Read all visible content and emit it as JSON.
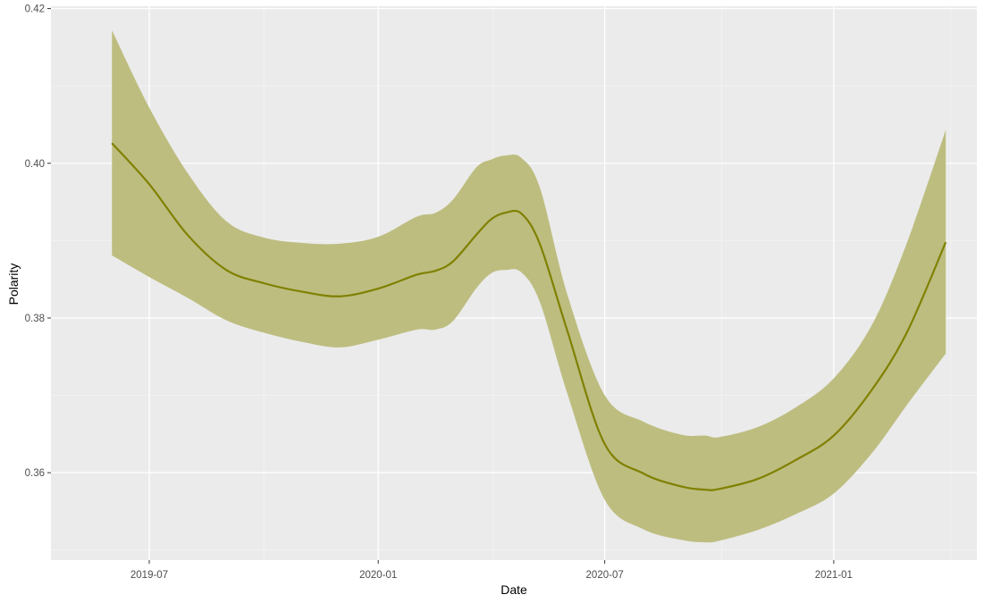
{
  "chart_data": {
    "type": "line",
    "xlabel": "Date",
    "ylabel": "Polarity",
    "x_ticks": [
      "2019-07-01",
      "2020-01-01",
      "2020-07-01",
      "2021-01-01"
    ],
    "x_tick_labels": [
      "2019-07",
      "2020-01",
      "2020-07",
      "2021-01"
    ],
    "y_ticks": [
      0.36,
      0.38,
      0.4,
      0.42
    ],
    "y_tick_labels": [
      "0.36",
      "0.38",
      "0.40",
      "0.42"
    ],
    "xlim": [
      "2019-04-13",
      "2021-04-26"
    ],
    "ylim": [
      0.3487,
      0.4203
    ],
    "grid": true,
    "legend": "none",
    "colors": {
      "panel_background": "#ebebeb",
      "grid_major": "#ffffff",
      "grid_minor": "#f5f5f5",
      "line": "#808000",
      "ribbon": "#bdbd80"
    },
    "series": [
      {
        "x": [
          "2019-06-01",
          "2019-07-01",
          "2019-08-01",
          "2019-09-01",
          "2019-10-01",
          "2019-11-01",
          "2019-12-01",
          "2020-01-01",
          "2020-02-01",
          "2020-02-16",
          "2020-03-01",
          "2020-03-20",
          "2020-04-01",
          "2020-04-12",
          "2020-04-25",
          "2020-05-10",
          "2020-06-01",
          "2020-07-01",
          "2020-08-01",
          "2020-09-01",
          "2020-09-20",
          "2020-10-01",
          "2020-11-01",
          "2020-12-01",
          "2021-01-01",
          "2021-02-01",
          "2021-03-01",
          "2021-04-01"
        ],
        "y": [
          0.4026,
          0.3973,
          0.3907,
          0.3862,
          0.3845,
          0.3834,
          0.3828,
          0.3838,
          0.3856,
          0.3861,
          0.3873,
          0.3908,
          0.3928,
          0.3936,
          0.3935,
          0.3895,
          0.3783,
          0.3637,
          0.3599,
          0.3582,
          0.3578,
          0.3579,
          0.3592,
          0.3616,
          0.3648,
          0.3708,
          0.3782,
          0.3898
        ],
        "lower": [
          0.3881,
          0.3853,
          0.3826,
          0.3797,
          0.3781,
          0.3769,
          0.3762,
          0.3772,
          0.3785,
          0.3785,
          0.3796,
          0.3839,
          0.3858,
          0.3862,
          0.3859,
          0.382,
          0.3702,
          0.3565,
          0.3527,
          0.3513,
          0.351,
          0.3512,
          0.3526,
          0.3546,
          0.3573,
          0.3626,
          0.3688,
          0.3754
        ],
        "upper": [
          0.4172,
          0.4072,
          0.3987,
          0.3925,
          0.3904,
          0.3897,
          0.3896,
          0.3905,
          0.3931,
          0.3936,
          0.3953,
          0.3995,
          0.4005,
          0.401,
          0.4007,
          0.3968,
          0.383,
          0.37,
          0.3666,
          0.3649,
          0.3648,
          0.3646,
          0.3659,
          0.3684,
          0.3722,
          0.3792,
          0.3898,
          0.4043
        ]
      }
    ]
  }
}
